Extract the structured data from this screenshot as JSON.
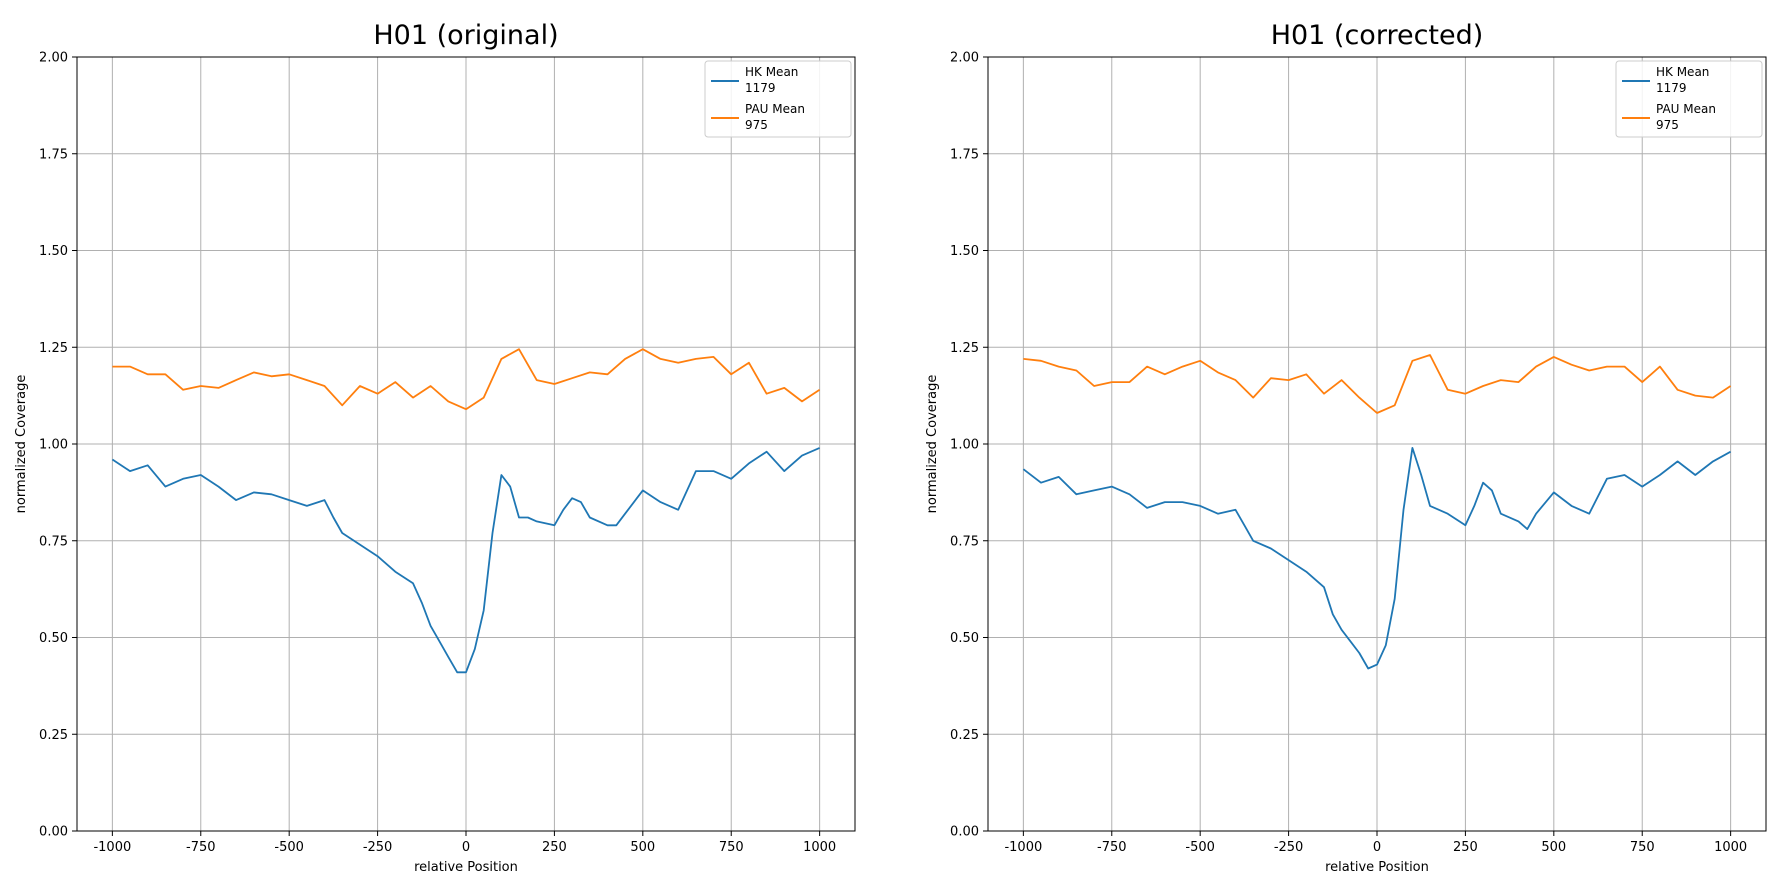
{
  "chart_data": [
    {
      "type": "line",
      "title": "H01 (original)",
      "xlabel": "relative Position",
      "ylabel": "normalized Coverage",
      "xlim": [
        -1100,
        1100
      ],
      "ylim": [
        0,
        2
      ],
      "grid": true,
      "legend_position": "top-right",
      "x_ticks": [
        -1000,
        -750,
        -500,
        -250,
        0,
        250,
        500,
        750,
        1000
      ],
      "x_tick_labels": [
        "-1000",
        "-750",
        "-500",
        "-250",
        "0",
        "250",
        "500",
        "750",
        "1000"
      ],
      "y_ticks": [
        0,
        0.25,
        0.5,
        0.75,
        1.0,
        1.25,
        1.5,
        1.75,
        2.0
      ],
      "y_tick_labels": [
        "0.00",
        "0.25",
        "0.50",
        "0.75",
        "1.00",
        "1.25",
        "1.50",
        "1.75",
        "2.00"
      ],
      "series": [
        {
          "name": "HK Mean\n1179",
          "legend_lines": [
            "HK Mean",
            "1179"
          ],
          "color": "#1f77b4",
          "x": [
            -1000,
            -950,
            -900,
            -850,
            -800,
            -750,
            -700,
            -650,
            -600,
            -550,
            -500,
            -450,
            -400,
            -375,
            -350,
            -300,
            -250,
            -200,
            -150,
            -125,
            -100,
            -75,
            -50,
            -25,
            0,
            25,
            50,
            75,
            100,
            125,
            150,
            175,
            200,
            250,
            275,
            300,
            325,
            350,
            400,
            425,
            450,
            500,
            550,
            600,
            650,
            700,
            750,
            800,
            850,
            900,
            950,
            1000
          ],
          "y": [
            0.96,
            0.93,
            0.945,
            0.89,
            0.91,
            0.92,
            0.89,
            0.855,
            0.875,
            0.87,
            0.855,
            0.84,
            0.855,
            0.81,
            0.77,
            0.74,
            0.71,
            0.67,
            0.64,
            0.59,
            0.53,
            0.49,
            0.45,
            0.41,
            0.41,
            0.47,
            0.57,
            0.77,
            0.92,
            0.89,
            0.81,
            0.81,
            0.8,
            0.79,
            0.83,
            0.86,
            0.85,
            0.81,
            0.79,
            0.79,
            0.82,
            0.88,
            0.85,
            0.83,
            0.93,
            0.93,
            0.91,
            0.95,
            0.98,
            0.93,
            0.97,
            0.99
          ]
        },
        {
          "name": "PAU Mean\n975",
          "legend_lines": [
            "PAU Mean",
            "975"
          ],
          "color": "#ff7f0e",
          "x": [
            -1000,
            -950,
            -900,
            -850,
            -800,
            -750,
            -700,
            -650,
            -600,
            -550,
            -500,
            -450,
            -400,
            -350,
            -300,
            -250,
            -200,
            -150,
            -100,
            -50,
            0,
            50,
            100,
            150,
            200,
            250,
            300,
            350,
            400,
            450,
            500,
            550,
            600,
            650,
            700,
            750,
            800,
            850,
            900,
            950,
            1000
          ],
          "y": [
            1.2,
            1.2,
            1.18,
            1.18,
            1.14,
            1.15,
            1.145,
            1.165,
            1.185,
            1.175,
            1.18,
            1.165,
            1.15,
            1.1,
            1.15,
            1.13,
            1.16,
            1.12,
            1.15,
            1.11,
            1.09,
            1.12,
            1.22,
            1.245,
            1.165,
            1.155,
            1.17,
            1.185,
            1.18,
            1.22,
            1.245,
            1.22,
            1.21,
            1.22,
            1.225,
            1.18,
            1.21,
            1.13,
            1.145,
            1.11,
            1.14
          ]
        }
      ]
    },
    {
      "type": "line",
      "title": "H01 (corrected)",
      "xlabel": "relative Position",
      "ylabel": "normalized Coverage",
      "xlim": [
        -1100,
        1100
      ],
      "ylim": [
        0,
        2
      ],
      "grid": true,
      "legend_position": "top-right",
      "x_ticks": [
        -1000,
        -750,
        -500,
        -250,
        0,
        250,
        500,
        750,
        1000
      ],
      "x_tick_labels": [
        "-1000",
        "-750",
        "-500",
        "-250",
        "0",
        "250",
        "500",
        "750",
        "1000"
      ],
      "y_ticks": [
        0,
        0.25,
        0.5,
        0.75,
        1.0,
        1.25,
        1.5,
        1.75,
        2.0
      ],
      "y_tick_labels": [
        "0.00",
        "0.25",
        "0.50",
        "0.75",
        "1.00",
        "1.25",
        "1.50",
        "1.75",
        "2.00"
      ],
      "series": [
        {
          "name": "HK Mean\n1179",
          "legend_lines": [
            "HK Mean",
            "1179"
          ],
          "color": "#1f77b4",
          "x": [
            -1000,
            -950,
            -900,
            -850,
            -800,
            -750,
            -700,
            -650,
            -600,
            -550,
            -500,
            -450,
            -400,
            -375,
            -350,
            -300,
            -250,
            -200,
            -150,
            -125,
            -100,
            -75,
            -50,
            -25,
            0,
            25,
            50,
            75,
            100,
            125,
            150,
            175,
            200,
            250,
            275,
            300,
            325,
            350,
            400,
            425,
            450,
            500,
            550,
            600,
            650,
            700,
            750,
            800,
            850,
            900,
            950,
            1000
          ],
          "y": [
            0.935,
            0.9,
            0.915,
            0.87,
            0.88,
            0.89,
            0.87,
            0.835,
            0.85,
            0.85,
            0.84,
            0.82,
            0.83,
            0.79,
            0.75,
            0.73,
            0.7,
            0.67,
            0.63,
            0.56,
            0.52,
            0.49,
            0.46,
            0.42,
            0.43,
            0.48,
            0.6,
            0.83,
            0.99,
            0.92,
            0.84,
            0.83,
            0.82,
            0.79,
            0.84,
            0.9,
            0.88,
            0.82,
            0.8,
            0.78,
            0.82,
            0.875,
            0.84,
            0.82,
            0.91,
            0.92,
            0.89,
            0.92,
            0.955,
            0.92,
            0.955,
            0.98
          ]
        },
        {
          "name": "PAU Mean\n975",
          "legend_lines": [
            "PAU Mean",
            "975"
          ],
          "color": "#ff7f0e",
          "x": [
            -1000,
            -950,
            -900,
            -850,
            -800,
            -750,
            -700,
            -650,
            -600,
            -550,
            -500,
            -450,
            -400,
            -350,
            -300,
            -250,
            -200,
            -150,
            -100,
            -50,
            0,
            50,
            100,
            150,
            200,
            250,
            300,
            350,
            400,
            450,
            500,
            550,
            600,
            650,
            700,
            750,
            800,
            850,
            900,
            950,
            1000
          ],
          "y": [
            1.22,
            1.215,
            1.2,
            1.19,
            1.15,
            1.16,
            1.16,
            1.2,
            1.18,
            1.2,
            1.215,
            1.185,
            1.165,
            1.12,
            1.17,
            1.165,
            1.18,
            1.13,
            1.165,
            1.12,
            1.08,
            1.1,
            1.215,
            1.23,
            1.14,
            1.13,
            1.15,
            1.165,
            1.16,
            1.2,
            1.225,
            1.205,
            1.19,
            1.2,
            1.2,
            1.16,
            1.2,
            1.14,
            1.125,
            1.12,
            1.15
          ]
        }
      ]
    }
  ]
}
